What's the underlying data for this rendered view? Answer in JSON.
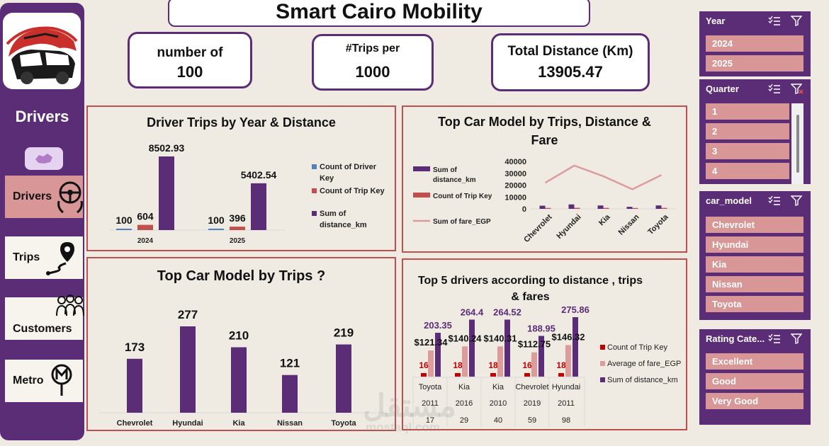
{
  "title": "Smart Cairo Mobility",
  "sidebar": {
    "heading": "Drivers",
    "nav": [
      {
        "label": "Drivers",
        "icon": "steering-wheel-icon"
      },
      {
        "label": "Trips",
        "icon": "route-pin-icon"
      },
      {
        "label": "Customers",
        "icon": "people-group-icon"
      },
      {
        "label": "Metro",
        "icon": "metro-sign-icon"
      }
    ]
  },
  "kpis": [
    {
      "label": "number of",
      "value": "100"
    },
    {
      "label": "#Trips per",
      "value": "1000"
    },
    {
      "label": "Total Distance (Km)",
      "value": "13905.47"
    }
  ],
  "colors": {
    "purple": "#5b2d77",
    "red": "#c0504d",
    "blue": "#4f81bd",
    "pink": "#dc9c9c",
    "slicer_item": "#d89696",
    "dark_red": "#c00000"
  },
  "chart_data": [
    {
      "type": "bar",
      "title": "Driver Trips by Year & Distance",
      "categories": [
        "2024",
        "2025"
      ],
      "series": [
        {
          "name": "Count of Driver Key",
          "values": [
            100,
            100
          ]
        },
        {
          "name": "Count of Trip Key",
          "values": [
            604,
            396
          ]
        },
        {
          "name": "Sum of distance_km",
          "values": [
            8502.93,
            5402.54
          ]
        }
      ],
      "data_labels": [
        [
          "100",
          "100"
        ],
        [
          "604",
          "396"
        ],
        [
          "8502.93",
          "5402.54"
        ]
      ],
      "legend": "right"
    },
    {
      "type": "bar",
      "title": "Top Car Model by Trips, Distance & Fare",
      "categories": [
        "Chevrolet",
        "Hyundai",
        "Kia",
        "Nissan",
        "Toyota"
      ],
      "series": [
        {
          "name": "Sum of distance_km",
          "type": "bar",
          "values": [
            2660,
            3730,
            2850,
            1690,
            2890
          ]
        },
        {
          "name": "Count of Trip Key",
          "type": "bar",
          "values": [
            173,
            277,
            210,
            121,
            219
          ]
        },
        {
          "name": "Sum of fare_EGP",
          "type": "line",
          "values": [
            22000,
            36500,
            27500,
            16500,
            28500
          ]
        }
      ],
      "ylim": [
        0,
        40000
      ],
      "yticks": [
        "0",
        "10000",
        "20000",
        "30000",
        "40000"
      ],
      "legend": "left"
    },
    {
      "type": "bar",
      "title": "Top Car Model by Trips ?",
      "categories": [
        "Chevrolet",
        "Hyundai",
        "Kia",
        "Nissan",
        "Toyota"
      ],
      "values": [
        173,
        277,
        210,
        121,
        219
      ],
      "ylim": [
        0,
        300
      ]
    },
    {
      "type": "bar",
      "title": "Top 5 drivers according to distance , trips & fares",
      "categories": [
        {
          "model": "Toyota",
          "year": "2011",
          "driver": "17"
        },
        {
          "model": "Kia",
          "year": "2016",
          "driver": "29"
        },
        {
          "model": "Kia",
          "year": "2010",
          "driver": "40"
        },
        {
          "model": "Chevrolet",
          "year": "2019",
          "driver": "59"
        },
        {
          "model": "Hyundai",
          "year": "2011",
          "driver": "98"
        }
      ],
      "series": [
        {
          "name": "Count of Trip Key",
          "values": [
            16,
            18,
            18,
            16,
            18
          ],
          "labels": [
            "16",
            "18",
            "18",
            "16",
            "18"
          ]
        },
        {
          "name": "Average of fare_EGP",
          "values": [
            121.34,
            140.24,
            140.31,
            112.75,
            146.32
          ],
          "labels": [
            "$121.34",
            "$140.24",
            "$140.31",
            "$112.75",
            "$146.32"
          ]
        },
        {
          "name": "Sum of distance_km",
          "values": [
            203.35,
            264.4,
            264.52,
            188.95,
            275.86
          ],
          "labels": [
            "203.35",
            "264.4",
            "264.52",
            "188.95",
            "275.86"
          ]
        }
      ],
      "legend": "right"
    }
  ],
  "slicers": [
    {
      "title": "Year",
      "items": [
        "2024",
        "2025"
      ]
    },
    {
      "title": "Quarter",
      "items": [
        "1",
        "2",
        "3",
        "4"
      ]
    },
    {
      "title": "car_model",
      "items": [
        "Chevrolet",
        "Hyundai",
        "Kia",
        "Nissan",
        "Toyota"
      ]
    },
    {
      "title": "Rating Cate...",
      "items": [
        "Excellent",
        "Good",
        "Very Good"
      ]
    }
  ],
  "watermark": {
    "text": "مستقل",
    "sub": "mostaql.com"
  }
}
